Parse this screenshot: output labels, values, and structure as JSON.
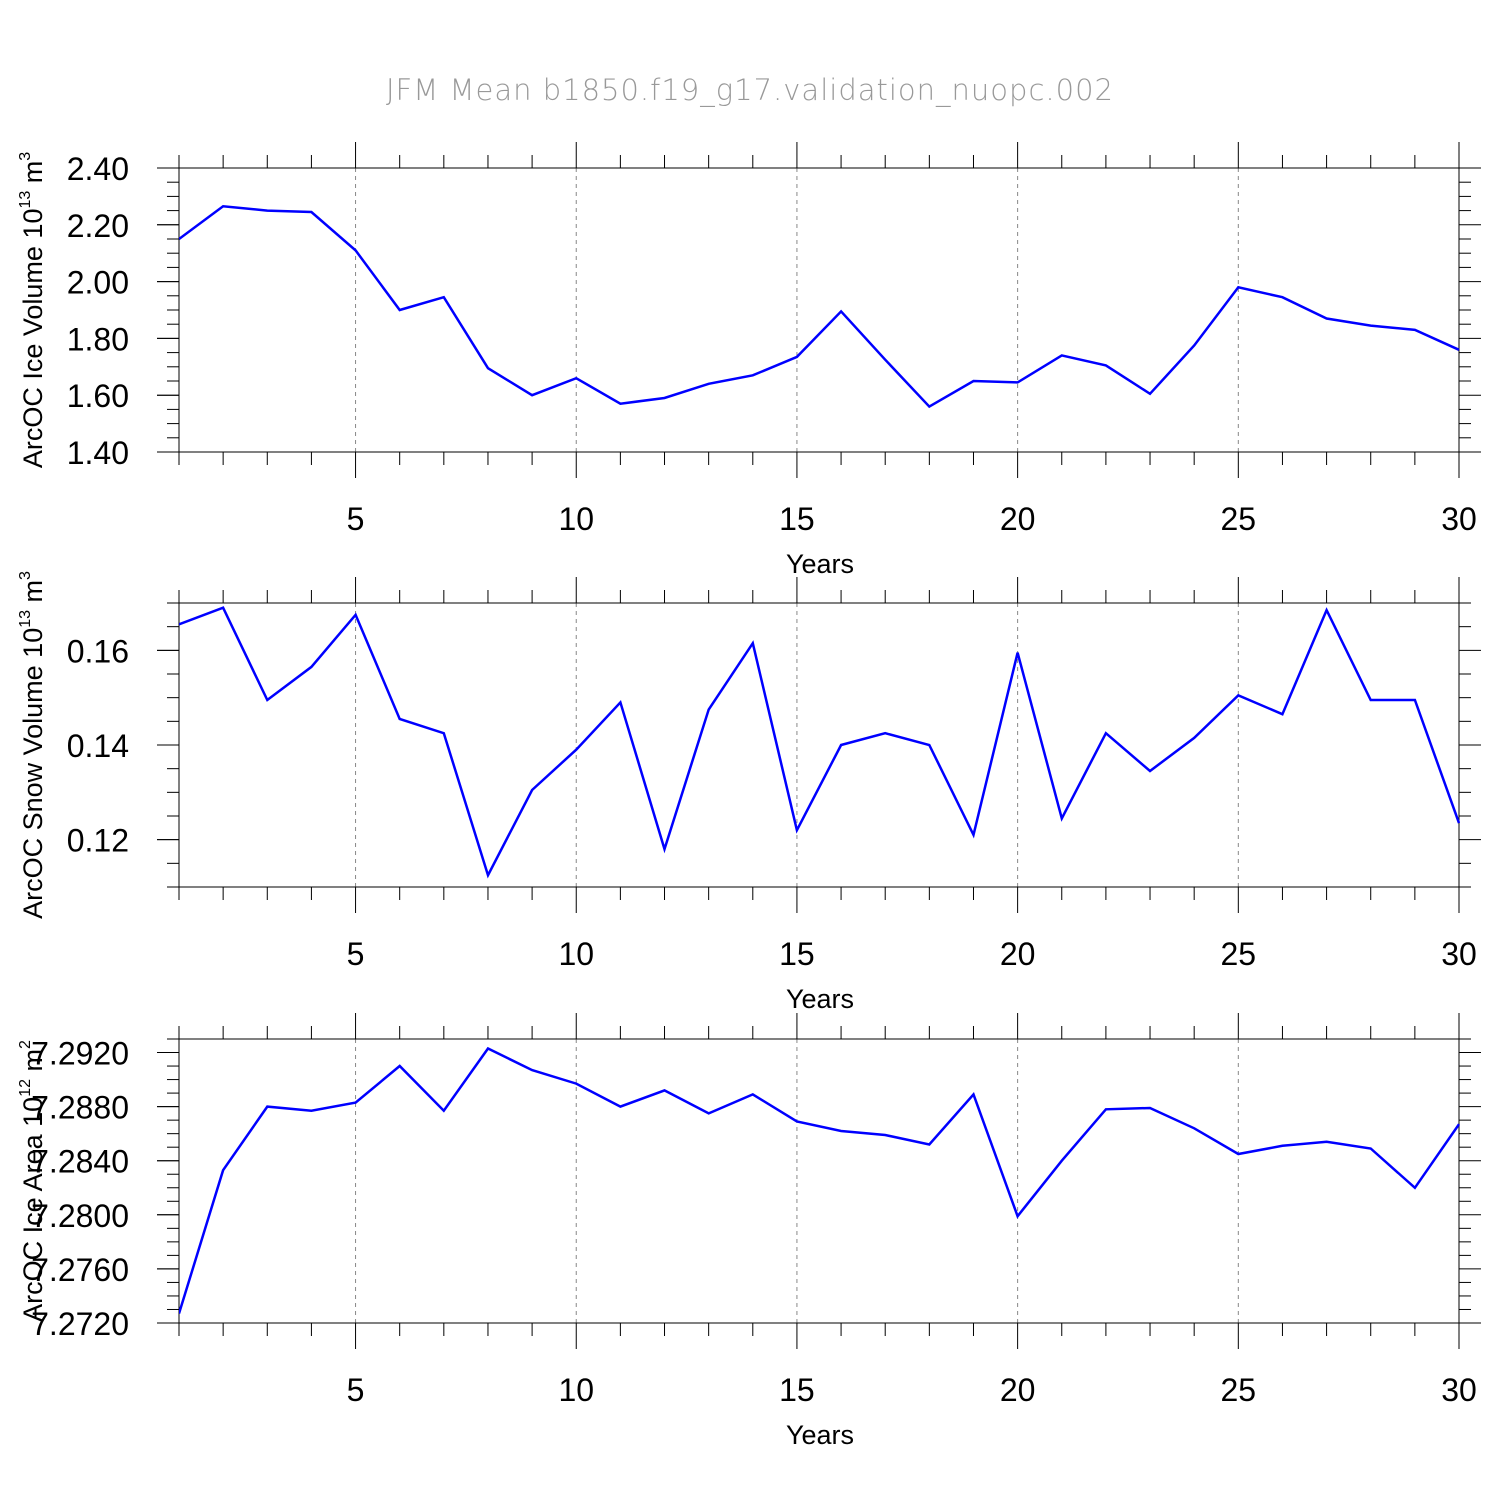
{
  "title": "JFM Mean b1850.f19_g17.validation_nuopc.002",
  "chart_data": [
    {
      "type": "line",
      "title": "",
      "xlabel": "Years",
      "ylabel": "ArcOC Ice Volume 10",
      "ylabel_exp": "13",
      "ylabel_unit": " m",
      "ylabel_unit_exp": "3",
      "xlim": [
        1,
        30
      ],
      "ylim": [
        1.4,
        2.4
      ],
      "yticks": [
        1.4,
        1.6,
        1.8,
        2.0,
        2.2,
        2.4
      ],
      "ytick_labels": [
        "1.40",
        "1.60",
        "1.80",
        "2.00",
        "2.20",
        "2.40"
      ],
      "yminor_step": 0.05,
      "grid": "dashed vertical at 5-year ticks",
      "series": [
        {
          "color": "#0000ff",
          "x": [
            1,
            2,
            3,
            4,
            5,
            6,
            7,
            8,
            9,
            10,
            11,
            12,
            13,
            14,
            15,
            16,
            17,
            18,
            19,
            20,
            21,
            22,
            23,
            24,
            25,
            26,
            27,
            28,
            29,
            30
          ],
          "values": [
            2.15,
            2.265,
            2.25,
            2.245,
            2.11,
            1.9,
            1.945,
            1.695,
            1.6,
            1.66,
            1.57,
            1.59,
            1.64,
            1.67,
            1.735,
            1.895,
            1.725,
            1.56,
            1.65,
            1.645,
            1.74,
            1.705,
            1.605,
            1.775,
            1.98,
            1.945,
            1.87,
            1.845,
            1.83,
            1.76
          ]
        }
      ]
    },
    {
      "type": "line",
      "title": "",
      "xlabel": "Years",
      "ylabel": "ArcOC Snow Volume 10",
      "ylabel_exp": "13",
      "ylabel_unit": " m",
      "ylabel_unit_exp": "3",
      "xlim": [
        1,
        30
      ],
      "ylim": [
        0.11,
        0.17
      ],
      "yticks": [
        0.12,
        0.14,
        0.16
      ],
      "ytick_labels": [
        "0.12",
        "0.14",
        "0.16"
      ],
      "yminor_step": 0.005,
      "grid": "dashed vertical at 5-year ticks",
      "series": [
        {
          "color": "#0000ff",
          "x": [
            1,
            2,
            3,
            4,
            5,
            6,
            7,
            8,
            9,
            10,
            11,
            12,
            13,
            14,
            15,
            16,
            17,
            18,
            19,
            20,
            21,
            22,
            23,
            24,
            25,
            26,
            27,
            28,
            29,
            30
          ],
          "values": [
            0.1655,
            0.169,
            0.1495,
            0.1565,
            0.1675,
            0.1455,
            0.1425,
            0.1125,
            0.1305,
            0.139,
            0.149,
            0.118,
            0.1475,
            0.1615,
            0.122,
            0.14,
            0.1425,
            0.14,
            0.121,
            0.1595,
            0.1245,
            0.1425,
            0.1345,
            0.1415,
            0.1505,
            0.1465,
            0.1685,
            0.1495,
            0.1495,
            0.1235
          ]
        }
      ]
    },
    {
      "type": "line",
      "title": "",
      "xlabel": "Years",
      "ylabel": "ArcOC Ice Area 10",
      "ylabel_exp": "12",
      "ylabel_unit": " m",
      "ylabel_unit_exp": "2",
      "xlim": [
        1,
        30
      ],
      "ylim": [
        7.272,
        7.293
      ],
      "yticks": [
        7.272,
        7.276,
        7.28,
        7.284,
        7.288,
        7.292
      ],
      "ytick_labels": [
        "7.2720",
        "7.2760",
        "7.2800",
        "7.2840",
        "7.2880",
        "7.2920"
      ],
      "yminor_step": 0.001,
      "grid": "dashed vertical at 5-year ticks",
      "series": [
        {
          "color": "#0000ff",
          "x": [
            1,
            2,
            3,
            4,
            5,
            6,
            7,
            8,
            9,
            10,
            11,
            12,
            13,
            14,
            15,
            16,
            17,
            18,
            19,
            20,
            21,
            22,
            23,
            24,
            25,
            26,
            27,
            28,
            29,
            30
          ],
          "values": [
            7.2727,
            7.2833,
            7.288,
            7.2877,
            7.2883,
            7.291,
            7.2877,
            7.2923,
            7.2907,
            7.2897,
            7.288,
            7.2892,
            7.2875,
            7.2889,
            7.2869,
            7.2862,
            7.2859,
            7.2852,
            7.2889,
            7.2799,
            7.284,
            7.2878,
            7.2879,
            7.2864,
            7.2845,
            7.2851,
            7.2854,
            7.2849,
            7.282,
            7.2867
          ]
        }
      ]
    }
  ],
  "xticks": [
    5,
    10,
    15,
    20,
    25,
    30
  ]
}
